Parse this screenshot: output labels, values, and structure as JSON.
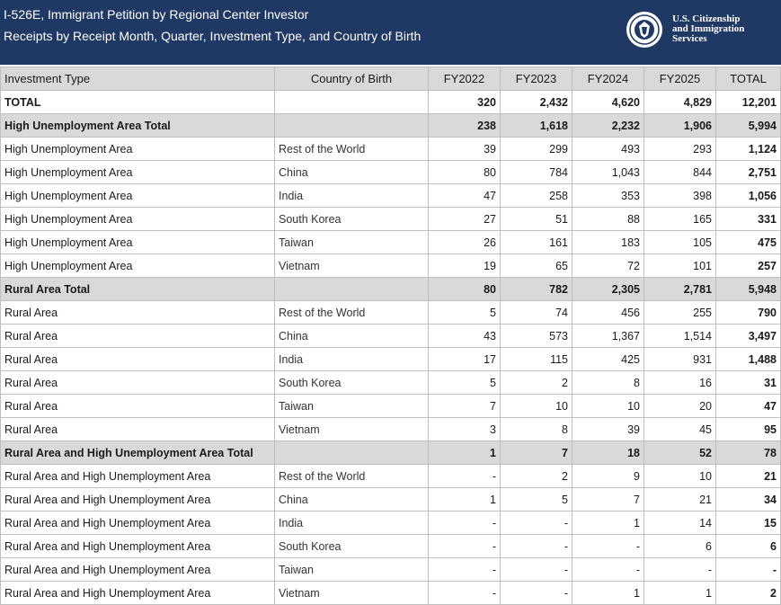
{
  "header": {
    "title_line1": "I-526E, Immigrant Petition by Regional Center Investor",
    "title_line2": "Receipts by Receipt Month, Quarter, Investment Type, and Country of Birth",
    "logo_text": [
      "U.S. Citizenship",
      "and Immigration",
      "Services"
    ],
    "logo_icon": "dhs-seal-icon",
    "bg_color": "#1f3864"
  },
  "table": {
    "columns": [
      "Investment Type",
      "Country of Birth",
      "FY2022",
      "FY2023",
      "FY2024",
      "FY2025",
      "TOTAL"
    ],
    "rows": [
      {
        "type": "TOTAL",
        "country": "",
        "fy2022": "320",
        "fy2023": "2,432",
        "fy2024": "4,620",
        "fy2025": "4,829",
        "total": "12,201"
      },
      {
        "type": "High Unemployment Area Total",
        "country": "",
        "fy2022": "238",
        "fy2023": "1,618",
        "fy2024": "2,232",
        "fy2025": "1,906",
        "total": "5,994"
      },
      {
        "type": "High Unemployment Area",
        "country": "Rest of the World",
        "fy2022": "39",
        "fy2023": "299",
        "fy2024": "493",
        "fy2025": "293",
        "total": "1,124"
      },
      {
        "type": "High Unemployment Area",
        "country": "China",
        "fy2022": "80",
        "fy2023": "784",
        "fy2024": "1,043",
        "fy2025": "844",
        "total": "2,751"
      },
      {
        "type": "High Unemployment Area",
        "country": "India",
        "fy2022": "47",
        "fy2023": "258",
        "fy2024": "353",
        "fy2025": "398",
        "total": "1,056"
      },
      {
        "type": "High Unemployment Area",
        "country": "South Korea",
        "fy2022": "27",
        "fy2023": "51",
        "fy2024": "88",
        "fy2025": "165",
        "total": "331"
      },
      {
        "type": "High Unemployment Area",
        "country": "Taiwan",
        "fy2022": "26",
        "fy2023": "161",
        "fy2024": "183",
        "fy2025": "105",
        "total": "475"
      },
      {
        "type": "High Unemployment Area",
        "country": "Vietnam",
        "fy2022": "19",
        "fy2023": "65",
        "fy2024": "72",
        "fy2025": "101",
        "total": "257"
      },
      {
        "type": "Rural Area Total",
        "country": "",
        "fy2022": "80",
        "fy2023": "782",
        "fy2024": "2,305",
        "fy2025": "2,781",
        "total": "5,948"
      },
      {
        "type": "Rural Area",
        "country": "Rest of the World",
        "fy2022": "5",
        "fy2023": "74",
        "fy2024": "456",
        "fy2025": "255",
        "total": "790"
      },
      {
        "type": "Rural Area",
        "country": "China",
        "fy2022": "43",
        "fy2023": "573",
        "fy2024": "1,367",
        "fy2025": "1,514",
        "total": "3,497"
      },
      {
        "type": "Rural Area",
        "country": "India",
        "fy2022": "17",
        "fy2023": "115",
        "fy2024": "425",
        "fy2025": "931",
        "total": "1,488"
      },
      {
        "type": "Rural Area",
        "country": "South Korea",
        "fy2022": "5",
        "fy2023": "2",
        "fy2024": "8",
        "fy2025": "16",
        "total": "31"
      },
      {
        "type": "Rural Area",
        "country": "Taiwan",
        "fy2022": "7",
        "fy2023": "10",
        "fy2024": "10",
        "fy2025": "20",
        "total": "47"
      },
      {
        "type": "Rural Area",
        "country": "Vietnam",
        "fy2022": "3",
        "fy2023": "8",
        "fy2024": "39",
        "fy2025": "45",
        "total": "95"
      },
      {
        "type": "Rural Area and High Unemployment Area Total",
        "country": "",
        "fy2022": "1",
        "fy2023": "7",
        "fy2024": "18",
        "fy2025": "52",
        "total": "78"
      },
      {
        "type": "Rural Area and High Unemployment Area",
        "country": "Rest of the World",
        "fy2022": "-",
        "fy2023": "2",
        "fy2024": "9",
        "fy2025": "10",
        "total": "21"
      },
      {
        "type": "Rural Area and High Unemployment Area",
        "country": "China",
        "fy2022": "1",
        "fy2023": "5",
        "fy2024": "7",
        "fy2025": "21",
        "total": "34"
      },
      {
        "type": "Rural Area and High Unemployment Area",
        "country": "India",
        "fy2022": "-",
        "fy2023": "-",
        "fy2024": "1",
        "fy2025": "14",
        "total": "15"
      },
      {
        "type": "Rural Area and High Unemployment Area",
        "country": "South Korea",
        "fy2022": "-",
        "fy2023": "-",
        "fy2024": "-",
        "fy2025": "6",
        "total": "6"
      },
      {
        "type": "Rural Area and High Unemployment Area",
        "country": "Taiwan",
        "fy2022": "-",
        "fy2023": "-",
        "fy2024": "-",
        "fy2025": "-",
        "total": "-"
      },
      {
        "type": "Rural Area and High Unemployment Area",
        "country": "Vietnam",
        "fy2022": "-",
        "fy2023": "-",
        "fy2024": "1",
        "fy2025": "1",
        "total": "2"
      }
    ]
  }
}
